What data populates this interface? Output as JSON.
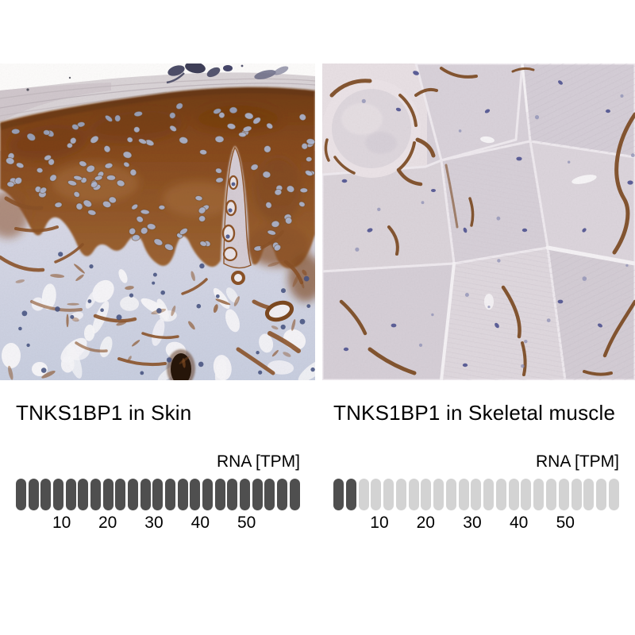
{
  "figure": {
    "panels": [
      {
        "caption": "TNKS1BP1 in Skin",
        "rna_label": "RNA [TPM]",
        "image_alt": "Immunohistochemistry staining of human skin: strong brown staining in epidermis, pale blue-lavender dermis with brown fibrous staining"
      },
      {
        "caption": "TNKS1BP1 in Skeletal muscle",
        "rna_label": "RNA [TPM]",
        "image_alt": "Immunohistochemistry staining of human skeletal muscle: pale fibers with brown staining along fiber borders and scattered blue nuclei"
      }
    ]
  },
  "chart_data": [
    {
      "type": "bar",
      "title": "TNKS1BP1 in Skin",
      "unit_label": "RNA [TPM]",
      "segments_total": 23,
      "segments_filled": 23,
      "tick_values": [
        10,
        20,
        30,
        40,
        50
      ],
      "xlim": [
        0,
        58
      ],
      "filled_color": "#4f4f4f",
      "empty_color": "#d3d3d3",
      "grid": false,
      "legend_position": "none"
    },
    {
      "type": "bar",
      "title": "TNKS1BP1 in Skeletal muscle",
      "unit_label": "RNA [TPM]",
      "segments_total": 23,
      "segments_filled": 2,
      "tick_values": [
        10,
        20,
        30,
        40,
        50
      ],
      "xlim": [
        0,
        58
      ],
      "filled_color": "#4f4f4f",
      "empty_color": "#d3d3d3",
      "grid": false,
      "legend_position": "none"
    }
  ],
  "palette": {
    "ihc_brown": "#8a5126",
    "ihc_brown_dark": "#6f3c14",
    "dermis_lavender": "#ccd1e1",
    "muscle_mauve": "#d6cfd7",
    "nucleus_blue": "#4a5584",
    "background": "#ffffff"
  }
}
